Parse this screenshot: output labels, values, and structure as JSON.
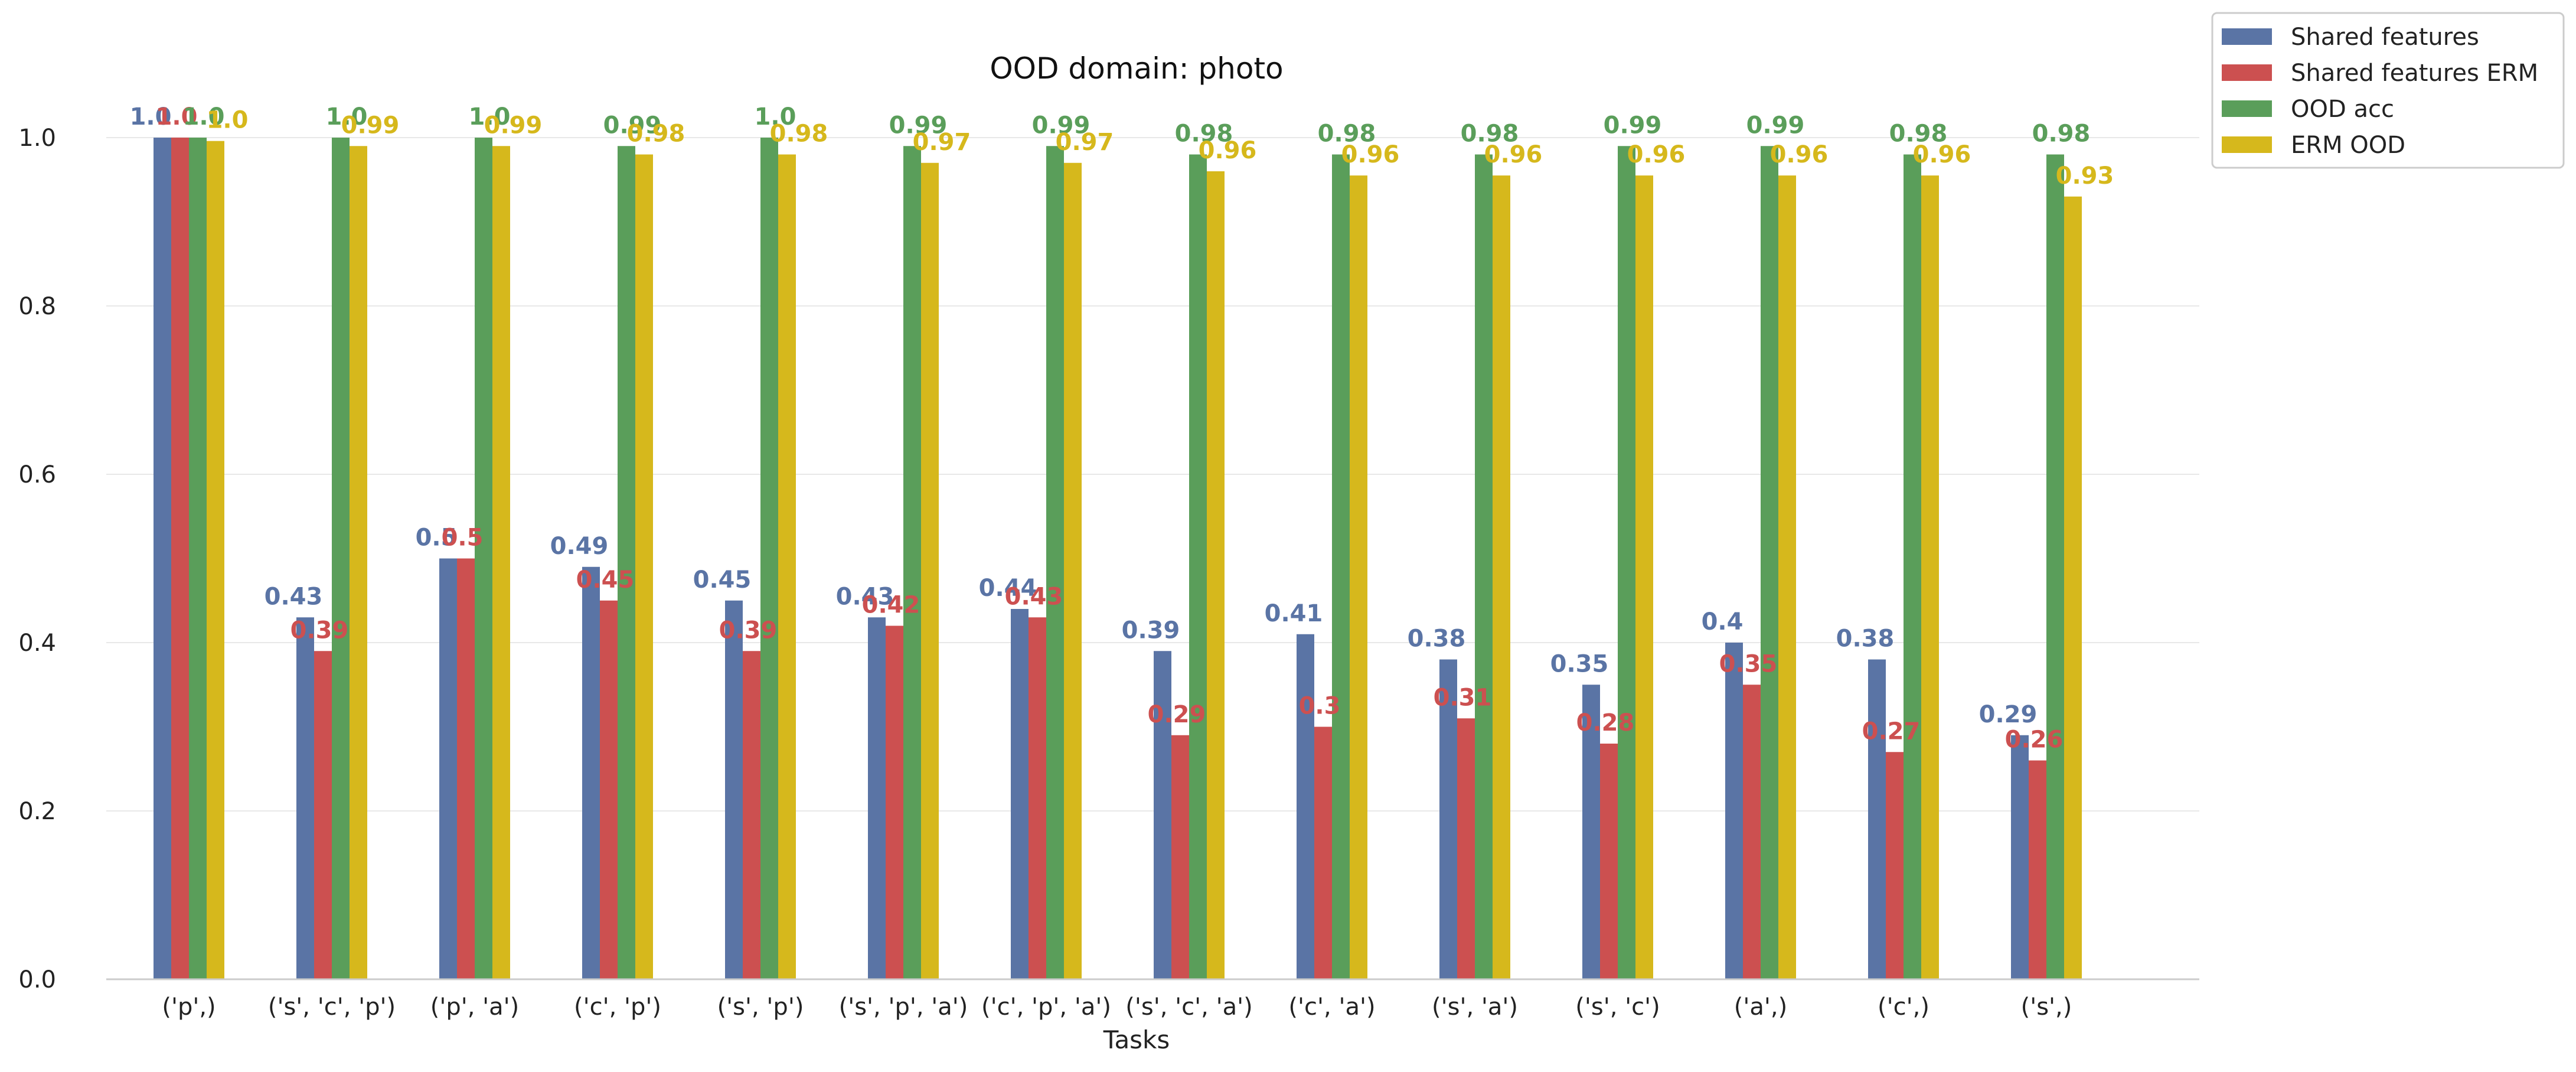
{
  "chart_data": {
    "type": "bar",
    "title": "OOD domain:  photo",
    "xlabel": "Tasks",
    "ylabel": "",
    "ylim": [
      0,
      1.05
    ],
    "yticks": [
      "0.0",
      "0.2",
      "0.4",
      "0.6",
      "0.8",
      "1.0"
    ],
    "grid": "horizontal",
    "legend": "top-right",
    "categories": [
      "('p',)",
      "('s', 'c', 'p')",
      "('p', 'a')",
      "('c', 'p')",
      "('s', 'p')",
      "('s', 'p', 'a')",
      "('c', 'p', 'a')",
      "('s', 'c', 'a')",
      "('c', 'a')",
      "('s', 'a')",
      "('s', 'c')",
      "('a',)",
      "('c',)",
      "('s',)"
    ],
    "series": [
      {
        "name": "Shared features",
        "color": "#5a74a5",
        "values": [
          1.0,
          0.43,
          0.5,
          0.49,
          0.45,
          0.43,
          0.44,
          0.39,
          0.41,
          0.38,
          0.35,
          0.4,
          0.38,
          0.29
        ],
        "labels": [
          "1.0",
          "0.43",
          "0.5",
          "0.49",
          "0.45",
          "0.43",
          "0.44",
          "0.39",
          "0.41",
          "0.38",
          "0.35",
          "0.4",
          "0.38",
          "0.29"
        ]
      },
      {
        "name": "Shared features ERM",
        "color": "#cc5050",
        "values": [
          1.0,
          0.39,
          0.5,
          0.45,
          0.39,
          0.42,
          0.43,
          0.29,
          0.3,
          0.31,
          0.28,
          0.35,
          0.27,
          0.26
        ],
        "labels": [
          "1.0",
          "0.39",
          "0.5",
          "0.45",
          "0.39",
          "0.42",
          "0.43",
          "0.29",
          "0.3",
          "0.31",
          "0.28",
          "0.35",
          "0.27",
          "0.26"
        ]
      },
      {
        "name": "OOD acc",
        "color": "#5a9e5a",
        "values": [
          1.0,
          1.0,
          1.0,
          0.99,
          1.0,
          0.99,
          0.99,
          0.98,
          0.98,
          0.98,
          0.99,
          0.99,
          0.98,
          0.98
        ],
        "labels": [
          "1.0",
          "1.0",
          "1.0",
          "0.99",
          "1.0",
          "0.99",
          "0.99",
          "0.98",
          "0.98",
          "0.98",
          "0.99",
          "0.99",
          "0.98",
          "0.98"
        ]
      },
      {
        "name": "ERM OOD",
        "color": "#d6b81c",
        "values": [
          0.996,
          0.99,
          0.99,
          0.98,
          0.98,
          0.97,
          0.97,
          0.96,
          0.955,
          0.955,
          0.955,
          0.955,
          0.955,
          0.93
        ],
        "labels": [
          "1.0",
          "0.99",
          "0.99",
          "0.98",
          "0.98",
          "0.97",
          "0.97",
          "0.96",
          "0.96",
          "0.96",
          "0.96",
          "0.96",
          "0.96",
          "0.93"
        ]
      }
    ]
  }
}
